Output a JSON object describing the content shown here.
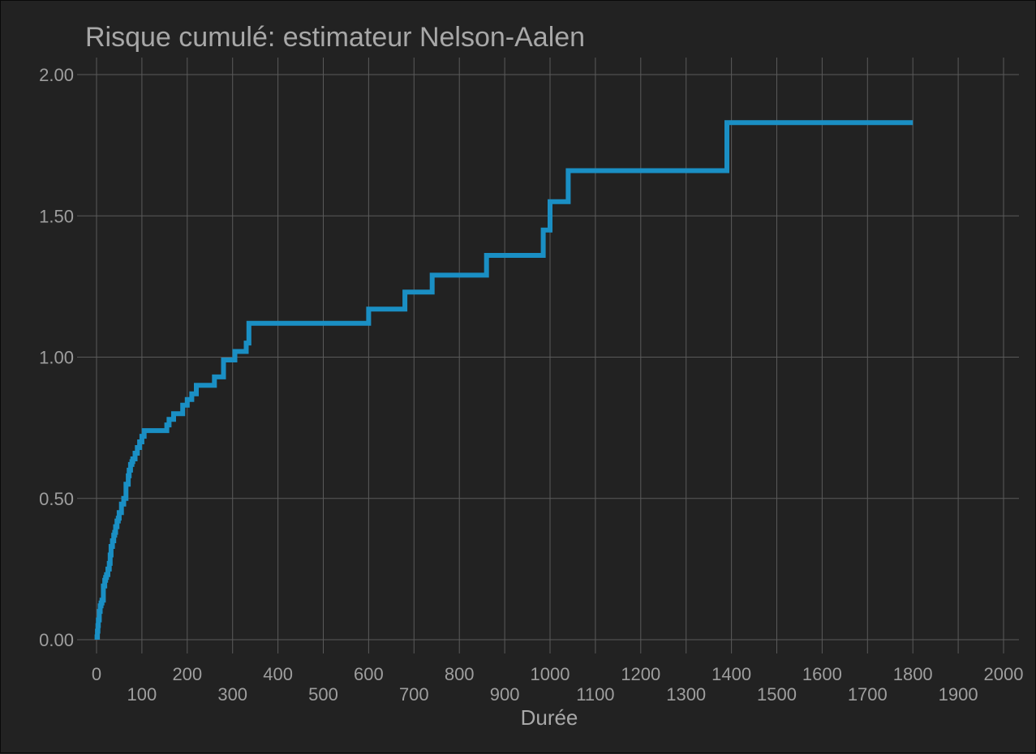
{
  "chart_data": {
    "type": "line",
    "step": true,
    "title": "Risque cumulé: estimateur Nelson-Aalen",
    "xlabel": "Durée",
    "ylabel": "",
    "xlim": [
      0,
      2000
    ],
    "ylim": [
      0,
      2
    ],
    "x_ticks_upper": [
      "0",
      "200",
      "400",
      "600",
      "800",
      "1000",
      "1200",
      "1400",
      "1600",
      "1800",
      "2000"
    ],
    "x_ticks_lower": [
      "100",
      "300",
      "500",
      "700",
      "900",
      "1100",
      "1300",
      "1500",
      "1700",
      "1900"
    ],
    "x_ticks_upper_values": [
      0,
      200,
      400,
      600,
      800,
      1000,
      1200,
      1400,
      1600,
      1800,
      2000
    ],
    "x_ticks_lower_values": [
      100,
      300,
      500,
      700,
      900,
      1100,
      1300,
      1500,
      1700,
      1900
    ],
    "y_ticks": [
      "0.00",
      "0.50",
      "1.00",
      "1.50",
      "2.00"
    ],
    "y_ticks_values": [
      0,
      0.5,
      1,
      1.5,
      2
    ],
    "grid": true,
    "line_color": "#1a8fc4",
    "series": [
      {
        "name": "Nelson-Aalen",
        "x": [
          1,
          2,
          3,
          4,
          6,
          8,
          10,
          12,
          15,
          18,
          20,
          22,
          25,
          28,
          30,
          32,
          35,
          38,
          40,
          42,
          45,
          48,
          50,
          55,
          60,
          65,
          70,
          72,
          75,
          78,
          80,
          85,
          90,
          95,
          100,
          105,
          150,
          155,
          160,
          170,
          185,
          190,
          200,
          210,
          220,
          255,
          260,
          275,
          280,
          305,
          310,
          330,
          336,
          590,
          600,
          670,
          680,
          730,
          740,
          850,
          860,
          980,
          985,
          992,
          1000,
          1030,
          1040,
          1385,
          1390,
          1800
        ],
        "y": [
          0.01,
          0.03,
          0.05,
          0.07,
          0.1,
          0.12,
          0.13,
          0.14,
          0.19,
          0.21,
          0.22,
          0.23,
          0.25,
          0.27,
          0.3,
          0.33,
          0.35,
          0.37,
          0.38,
          0.4,
          0.42,
          0.43,
          0.45,
          0.48,
          0.5,
          0.55,
          0.58,
          0.6,
          0.62,
          0.63,
          0.64,
          0.66,
          0.68,
          0.7,
          0.72,
          0.74,
          0.74,
          0.76,
          0.78,
          0.8,
          0.8,
          0.83,
          0.85,
          0.87,
          0.9,
          0.9,
          0.93,
          0.93,
          0.99,
          1.02,
          1.02,
          1.05,
          1.12,
          1.12,
          1.17,
          1.17,
          1.23,
          1.23,
          1.29,
          1.29,
          1.36,
          1.36,
          1.45,
          1.45,
          1.55,
          1.55,
          1.66,
          1.66,
          1.83,
          1.83
        ]
      }
    ]
  }
}
